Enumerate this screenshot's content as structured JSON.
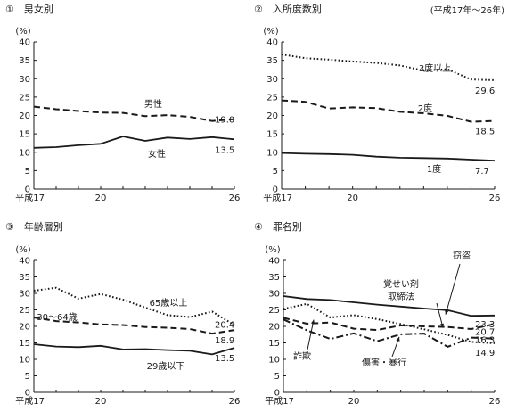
{
  "note": "(平成17年～26年)",
  "chart_data": [
    {
      "id": "gender",
      "type": "line",
      "title": "①　男女別",
      "ylabel": "(%)",
      "ylim": [
        0,
        40
      ],
      "yticks": [
        0,
        5,
        10,
        15,
        20,
        25,
        30,
        35,
        40
      ],
      "x": [
        17,
        18,
        19,
        20,
        21,
        22,
        23,
        24,
        25,
        26
      ],
      "xtick_labels": [
        {
          "x": 17,
          "label": "平成17"
        },
        {
          "x": 20,
          "label": "20"
        },
        {
          "x": 26,
          "label": "26"
        }
      ],
      "series": [
        {
          "name": "男性",
          "style": "dashed",
          "values": [
            22.4,
            21.7,
            21.2,
            20.8,
            20.7,
            19.8,
            20.1,
            19.6,
            18.5,
            19.0
          ],
          "end_label": "19.0"
        },
        {
          "name": "女性",
          "style": "solid",
          "values": [
            11.2,
            11.4,
            11.9,
            12.3,
            14.3,
            13.1,
            14.0,
            13.6,
            14.1,
            13.5
          ],
          "end_label": "13.5"
        }
      ]
    },
    {
      "id": "admissions",
      "type": "line",
      "title": "②　入所度数別",
      "ylabel": "(%)",
      "ylim": [
        0,
        40
      ],
      "yticks": [
        0,
        5,
        10,
        15,
        20,
        25,
        30,
        35,
        40
      ],
      "x": [
        17,
        18,
        19,
        20,
        21,
        22,
        23,
        24,
        25,
        26
      ],
      "xtick_labels": [
        {
          "x": 17,
          "label": "平成17"
        },
        {
          "x": 20,
          "label": "20"
        },
        {
          "x": 26,
          "label": "26"
        }
      ],
      "series": [
        {
          "name": "3度以上",
          "style": "dotted",
          "values": [
            36.6,
            35.6,
            35.2,
            34.7,
            34.3,
            33.6,
            32.2,
            32.6,
            29.8,
            29.6
          ],
          "end_label": "29.6"
        },
        {
          "name": "2度",
          "style": "dashed",
          "values": [
            24.1,
            23.7,
            21.9,
            22.2,
            22.0,
            21.0,
            20.6,
            19.9,
            18.3,
            18.5
          ],
          "end_label": "18.5"
        },
        {
          "name": "1度",
          "style": "solid",
          "values": [
            9.8,
            9.6,
            9.5,
            9.3,
            8.8,
            8.5,
            8.4,
            8.3,
            8.0,
            7.7
          ],
          "end_label": "7.7"
        }
      ]
    },
    {
      "id": "age",
      "type": "line",
      "title": "③　年齢層別",
      "ylabel": "(%)",
      "ylim": [
        0,
        40
      ],
      "yticks": [
        0,
        5,
        10,
        15,
        20,
        25,
        30,
        35,
        40
      ],
      "x": [
        17,
        18,
        19,
        20,
        21,
        22,
        23,
        24,
        25,
        26
      ],
      "xtick_labels": [
        {
          "x": 17,
          "label": "平成17"
        },
        {
          "x": 20,
          "label": "20"
        },
        {
          "x": 26,
          "label": "26"
        }
      ],
      "series": [
        {
          "name": "65歳以上",
          "style": "dotted",
          "values": [
            30.8,
            31.7,
            28.4,
            29.8,
            28.1,
            25.7,
            23.4,
            22.8,
            24.5,
            20.4
          ],
          "end_label": "20.4"
        },
        {
          "name": "30～64歳",
          "style": "dashed",
          "values": [
            22.7,
            21.6,
            21.2,
            20.6,
            20.4,
            19.8,
            19.6,
            19.2,
            17.8,
            18.9
          ],
          "end_label": "18.9"
        },
        {
          "name": "29歳以下",
          "style": "solid",
          "values": [
            14.6,
            13.9,
            13.7,
            14.1,
            13.0,
            13.1,
            12.8,
            12.6,
            11.5,
            13.5
          ],
          "end_label": "13.5"
        }
      ]
    },
    {
      "id": "offense",
      "type": "line",
      "title": "④　罪名別",
      "ylabel": "(%)",
      "ylim": [
        0,
        40
      ],
      "yticks": [
        0,
        5,
        10,
        15,
        20,
        25,
        30,
        35,
        40
      ],
      "x": [
        17,
        18,
        19,
        20,
        21,
        22,
        23,
        24,
        25,
        26
      ],
      "xtick_labels": [
        {
          "x": 17,
          "label": "平成17"
        },
        {
          "x": 20,
          "label": "20"
        },
        {
          "x": 26,
          "label": "26"
        }
      ],
      "series": [
        {
          "name": "窃盗",
          "style": "solid",
          "values": [
            29.2,
            28.3,
            28.0,
            27.3,
            26.6,
            26.0,
            25.4,
            24.9,
            23.2,
            23.3
          ],
          "end_label": "23.3"
        },
        {
          "name": "覚せい剤取締法",
          "style": "dashed",
          "values": [
            22.6,
            20.8,
            21.2,
            19.3,
            18.9,
            20.3,
            20.0,
            19.8,
            19.2,
            20.7
          ],
          "end_label": "20.7"
        },
        {
          "name": "詐欺",
          "style": "dotted",
          "values": [
            25.3,
            26.8,
            22.7,
            23.4,
            22.2,
            20.7,
            19.1,
            17.4,
            15.3,
            14.9
          ],
          "end_label": "14.9"
        },
        {
          "name": "傷害・暴行",
          "style": "dashdot",
          "values": [
            22.1,
            18.8,
            16.2,
            17.9,
            15.5,
            17.6,
            17.8,
            13.8,
            16.6,
            16.3
          ],
          "end_label": "16.3"
        }
      ]
    }
  ]
}
